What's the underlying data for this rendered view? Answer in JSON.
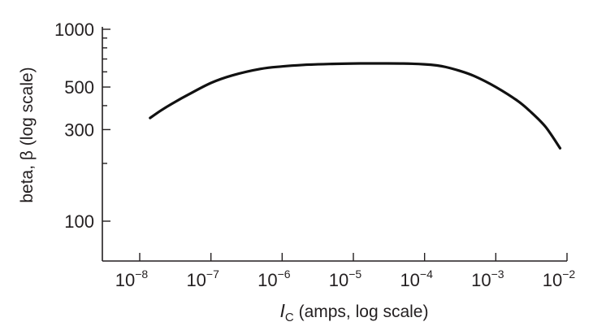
{
  "chart_data": {
    "type": "line",
    "title": "",
    "xlabel": "I",
    "xlabel_sub": "C",
    "xlabel_rest": " (amps, log scale)",
    "ylabel": "beta, β  (log scale)",
    "x_scale": "log",
    "y_scale": "log",
    "xlim": [
      1e-08,
      0.01
    ],
    "ylim": [
      100,
      1000
    ],
    "grid": false,
    "x_ticks": [
      {
        "base": "10",
        "exp": "−8",
        "value": 1e-08
      },
      {
        "base": "10",
        "exp": "−7",
        "value": 1e-07
      },
      {
        "base": "10",
        "exp": "−6",
        "value": 1e-06
      },
      {
        "base": "10",
        "exp": "−5",
        "value": 1e-05
      },
      {
        "base": "10",
        "exp": "−4",
        "value": 0.0001
      },
      {
        "base": "10",
        "exp": "−3",
        "value": 0.001
      },
      {
        "base": "10",
        "exp": "−2",
        "value": 0.01
      }
    ],
    "y_ticks_major": [
      {
        "label": "1000",
        "value": 1000
      },
      {
        "label": "500",
        "value": 500
      },
      {
        "label": "300",
        "value": 300
      },
      {
        "label": "100",
        "value": 100
      }
    ],
    "y_ticks_minor": [
      200,
      400,
      600,
      700,
      800,
      900
    ],
    "series": [
      {
        "x": [
          1.4e-08,
          2e-08,
          3e-08,
          5e-08,
          1e-07,
          2e-07,
          5e-07,
          1e-06,
          2e-06,
          5e-06,
          1e-05,
          2e-05,
          5e-05,
          0.0001,
          0.00015,
          0.0002,
          0.0003,
          0.0005,
          0.001,
          0.002,
          0.003,
          0.005,
          0.008
        ],
        "y": [
          345,
          378,
          414,
          460,
          525,
          575,
          622,
          640,
          652,
          660,
          663,
          664,
          663,
          657,
          648,
          635,
          610,
          570,
          500,
          425,
          375,
          310,
          240
        ]
      }
    ]
  }
}
